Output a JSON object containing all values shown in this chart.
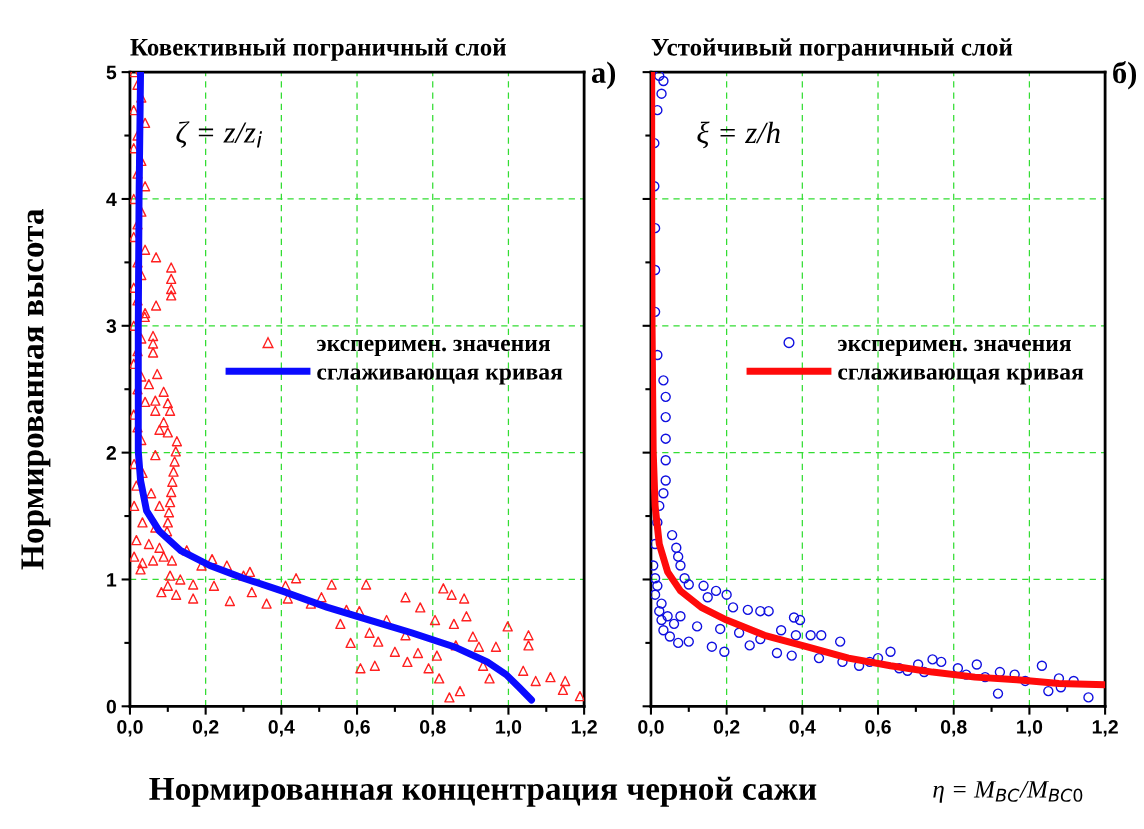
{
  "chart_data": [
    {
      "type": "scatter",
      "title": "Ковективный пограничный слой",
      "xlabel": "Нормированная концентрация черной сажи",
      "ylabel": "Нормированная высота",
      "annotations": [
        "ζ = z/z$_{i}$",
        "а)"
      ],
      "xlim": [
        0,
        1.2
      ],
      "ylim": [
        0,
        5
      ],
      "xticks": [
        {
          "value": 0,
          "label": "0,0"
        },
        {
          "value": 0.2,
          "label": "0,2"
        },
        {
          "value": 0.4,
          "label": "0,4"
        },
        {
          "value": 0.6,
          "label": "0,6"
        },
        {
          "value": 0.8,
          "label": "0,8"
        },
        {
          "value": 1.0,
          "label": "1,0"
        },
        {
          "value": 1.2,
          "label": "1,2"
        }
      ],
      "yticks": [
        0,
        1,
        2,
        3,
        4,
        5
      ],
      "grid": true,
      "legend": "right",
      "series": [
        {
          "name": "эксперимен. значения",
          "marker": "triangle",
          "color": "#ff2020",
          "x": [
            0.01,
            0.02,
            0.03,
            0.01,
            0.04,
            0.02,
            0.01,
            0.03,
            0.02,
            0.04,
            0.01,
            0.03,
            0.02,
            0.01,
            0.04,
            0.02,
            0.03,
            0.01,
            0.02,
            0.04,
            0.01,
            0.03,
            0.02,
            0.01,
            0.03,
            0.02,
            0.04,
            0.01,
            0.02,
            0.03,
            0.069,
            0.109,
            0.109,
            0.109,
            0.109,
            0.069,
            0.039,
            0.061,
            0.061,
            0.061,
            0.072,
            0.05,
            0.089,
            0.067,
            0.1,
            0.067,
            0.106,
            0.089,
            0.078,
            0.1,
            0.124,
            0.121,
            0.118,
            0.115,
            0.112,
            0.109,
            0.106,
            0.103,
            0.1,
            0.098,
            0.011,
            0.033,
            0.067,
            0.017,
            0.056,
            0.078,
            0.011,
            0.033,
            0.067,
            0.017,
            0.05,
            0.078,
            0.011,
            0.033,
            0.061,
            0.089,
            0.028,
            0.111,
            0.106,
            0.133,
            0.083,
            0.122,
            0.1,
            0.15,
            0.167,
            0.167,
            0.189,
            0.217,
            0.222,
            0.256,
            0.264,
            0.3,
            0.317,
            0.322,
            0.361,
            0.411,
            0.439,
            0.417,
            0.478,
            0.506,
            0.533,
            0.556,
            0.572,
            0.583,
            0.606,
            0.609,
            0.624,
            0.633,
            0.647,
            0.656,
            0.678,
            0.7,
            0.728,
            0.728,
            0.733,
            0.767,
            0.761,
            0.789,
            0.806,
            0.811,
            0.817,
            0.828,
            0.844,
            0.85,
            0.856,
            0.861,
            0.872,
            0.883,
            0.889,
            0.906,
            0.922,
            0.933,
            0.95,
            0.967,
            0.998,
            1.039,
            1.053,
            1.053,
            1.072,
            1.111,
            1.144,
            1.15,
            1.189
          ],
          "values": [
            5.0,
            4.9,
            4.8,
            4.7,
            4.6,
            4.5,
            4.4,
            4.3,
            4.2,
            4.1,
            4.0,
            3.9,
            3.8,
            3.7,
            3.6,
            3.5,
            3.4,
            3.3,
            3.2,
            3.1,
            3.0,
            2.9,
            2.8,
            2.7,
            2.6,
            2.5,
            2.4,
            2.3,
            2.2,
            2.1,
            3.54,
            3.46,
            3.37,
            3.29,
            3.24,
            3.16,
            3.07,
            2.92,
            2.86,
            2.79,
            2.62,
            2.54,
            2.48,
            2.41,
            2.39,
            2.33,
            2.33,
            2.24,
            2.18,
            2.16,
            2.09,
            2.01,
            1.93,
            1.85,
            1.77,
            1.69,
            1.61,
            1.53,
            1.45,
            1.38,
            1.91,
            1.84,
            1.98,
            1.74,
            1.68,
            1.58,
            1.58,
            1.45,
            1.41,
            1.31,
            1.28,
            1.25,
            1.18,
            1.13,
            1.15,
            1.18,
            1.08,
            1.15,
            1.03,
            1.0,
            0.9,
            0.88,
            0.95,
            1.23,
            0.96,
            0.85,
            1.11,
            1.16,
            0.95,
            1.11,
            0.83,
            1.03,
            1.06,
            0.9,
            0.81,
            0.95,
            1.01,
            0.85,
            0.81,
            0.86,
            0.96,
            0.65,
            0.76,
            0.5,
            0.75,
            0.3,
            0.96,
            0.58,
            0.32,
            0.51,
            0.68,
            0.43,
            0.86,
            0.56,
            0.35,
            0.78,
            0.42,
            0.3,
            0.68,
            0.4,
            0.22,
            0.93,
            0.07,
            0.88,
            0.65,
            0.48,
            0.12,
            0.85,
            0.71,
            0.55,
            0.47,
            0.32,
            0.22,
            0.47,
            0.63,
            0.28,
            0.56,
            0.48,
            0.2,
            0.23,
            0.13,
            0.2,
            0.08
          ]
        },
        {
          "name": "сглаживающая кривая",
          "type": "line",
          "marker": "none",
          "line_style": "solid",
          "color": "#0a0aff",
          "x": [
            0.028,
            0.024,
            0.022,
            0.022,
            0.028,
            0.044,
            0.078,
            0.133,
            0.211,
            0.3,
            0.411,
            0.522,
            0.633,
            0.744,
            0.856,
            0.944,
            0.994,
            1.028,
            1.061
          ],
          "values": [
            5.0,
            4.0,
            3.0,
            2.01,
            1.78,
            1.54,
            1.38,
            1.23,
            1.11,
            1.01,
            0.9,
            0.78,
            0.68,
            0.58,
            0.47,
            0.35,
            0.25,
            0.15,
            0.05
          ]
        }
      ]
    },
    {
      "type": "scatter",
      "title": "Устойчивый пограничный слой",
      "annotations": [
        "ξ = z/h",
        "б)",
        "η = M$_{BC}$/M$_{BC0}$"
      ],
      "xlim": [
        0,
        1.2
      ],
      "ylim": [
        0,
        5
      ],
      "xticks": [
        {
          "value": 0,
          "label": "0,0"
        },
        {
          "value": 0.2,
          "label": "0,2"
        },
        {
          "value": 0.4,
          "label": "0,4"
        },
        {
          "value": 0.6,
          "label": "0,6"
        },
        {
          "value": 0.8,
          "label": "0,8"
        },
        {
          "value": 1.0,
          "label": "1,0"
        },
        {
          "value": 1.2,
          "label": "1,2"
        }
      ],
      "yticks": [
        0,
        1,
        2,
        3,
        4,
        5
      ],
      "tick_labels": "x",
      "grid": true,
      "legend": "right",
      "series": [
        {
          "name": "эксперимен. значения",
          "marker": "circle",
          "color": "#1010e0",
          "x": [
            0.006,
            0.011,
            0.017,
            0.022,
            0.033,
            0.039,
            0.039,
            0.039,
            0.039,
            0.039,
            0.033,
            0.017,
            0.011,
            0.011,
            0.011,
            0.009,
            0.009,
            0.017,
            0.028,
            0.033,
            0.022,
            0.056,
            0.067,
            0.072,
            0.078,
            0.089,
            0.1,
            0.011,
            0.011,
            0.022,
            0.028,
            0.033,
            0.05,
            0.072,
            0.017,
            0.028,
            0.044,
            0.061,
            0.078,
            0.1,
            0.122,
            0.139,
            0.15,
            0.161,
            0.172,
            0.183,
            0.194,
            0.2,
            0.217,
            0.233,
            0.256,
            0.261,
            0.289,
            0.289,
            0.311,
            0.333,
            0.344,
            0.378,
            0.394,
            0.383,
            0.372,
            0.422,
            0.444,
            0.45,
            0.5,
            0.506,
            0.55,
            0.578,
            0.6,
            0.633,
            0.656,
            0.678,
            0.706,
            0.722,
            0.744,
            0.767,
            0.811,
            0.833,
            0.861,
            0.883,
            0.917,
            0.922,
            0.961,
            0.989,
            1.033,
            1.05,
            1.078,
            1.083,
            1.117,
            1.156
          ],
          "values": [
            1.11,
            1.28,
            1.45,
            1.58,
            1.68,
            1.78,
            1.94,
            2.11,
            2.28,
            2.44,
            2.57,
            2.77,
            3.11,
            3.44,
            3.77,
            4.1,
            4.44,
            4.7,
            4.83,
            4.93,
            4.97,
            1.35,
            1.25,
            1.18,
            1.11,
            1.01,
            0.96,
            1.01,
            0.88,
            0.75,
            0.68,
            0.6,
            0.55,
            0.5,
            0.95,
            0.81,
            0.71,
            0.65,
            0.71,
            0.51,
            0.63,
            0.95,
            0.86,
            0.47,
            0.91,
            0.61,
            0.43,
            0.88,
            0.78,
            0.58,
            0.76,
            0.48,
            0.75,
            0.53,
            0.75,
            0.42,
            0.6,
            0.7,
            0.68,
            0.56,
            0.4,
            0.56,
            0.38,
            0.56,
            0.51,
            0.35,
            0.32,
            0.35,
            0.38,
            0.43,
            0.3,
            0.28,
            0.33,
            0.27,
            0.37,
            0.35,
            0.3,
            0.25,
            0.33,
            0.23,
            0.1,
            0.27,
            0.25,
            0.2,
            0.32,
            0.12,
            0.22,
            0.15,
            0.2,
            0.07
          ]
        },
        {
          "name": "сглаживающая кривая",
          "type": "line",
          "marker": "none",
          "line_style": "solid",
          "color": "#ff0a0a",
          "x": [
            0.002,
            0.002,
            0.003,
            0.006,
            0.011,
            0.022,
            0.044,
            0.078,
            0.133,
            0.2,
            0.3,
            0.411,
            0.522,
            0.633,
            0.744,
            0.856,
            0.967,
            1.078,
            1.2
          ],
          "values": [
            5.0,
            4.0,
            3.0,
            2.01,
            1.58,
            1.28,
            1.06,
            0.91,
            0.78,
            0.68,
            0.56,
            0.47,
            0.38,
            0.32,
            0.27,
            0.23,
            0.21,
            0.18,
            0.17
          ]
        }
      ]
    }
  ]
}
